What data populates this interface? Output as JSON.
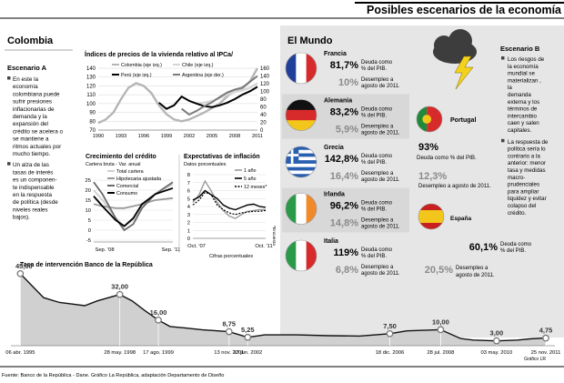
{
  "header": {
    "title": "Posibles escenarios de la economía"
  },
  "colombia": {
    "title": "Colombia",
    "scenario_a": {
      "title": "Escenario A",
      "bullets": [
        [
          "En este la",
          "economía",
          "colombiana puede",
          "sufrir presiones",
          "inflacionarias de",
          "demanda y la",
          "expansión del",
          "crédito se acelera o",
          "se mantiene a",
          "ritmos actuales por",
          "mucho tiempo."
        ],
        [
          "Un alza de las",
          "tasas de interés",
          "es un componen-",
          "te indispensable",
          "en la respuesta",
          "de política (desde",
          "niveles reales",
          "bajos)."
        ]
      ]
    }
  },
  "mundo": {
    "title": "El Mundo",
    "desc_line1": "Deuda como",
    "desc_line2": "% del PIB.",
    "unemp_line1": "Desempleo a",
    "unemp_line2": "agosto de 2011.",
    "countries": [
      {
        "name": "Francia",
        "debt": "81,7%",
        "unemployment": "10%",
        "flag": "france"
      },
      {
        "name": "Alemania",
        "debt": "83,2%",
        "unemployment": "5,9%",
        "flag": "germany"
      },
      {
        "name": "Grecia",
        "debt": "142,8%",
        "unemployment": "16,4%",
        "flag": "greece"
      },
      {
        "name": "Irlanda",
        "debt": "96,2%",
        "unemployment": "14,8%",
        "flag": "ireland"
      },
      {
        "name": "Italia",
        "debt": "119%",
        "unemployment": "6,8%",
        "flag": "italy"
      }
    ],
    "portugal": {
      "name": "Portugal",
      "debt": "93%",
      "debt_text": "Deuda como % del PIB.",
      "unemployment": "12,3%",
      "unemp_text": "Desempleo a agosto de 2011."
    },
    "espana": {
      "name": "España",
      "debt": "60,1%",
      "debt_line1": "Deuda como",
      "debt_line2": "% del PIB.",
      "unemployment": "20,5%",
      "unemp_line1": "Desempleo a",
      "unemp_line2": "agosto de 2011."
    }
  },
  "scenario_b": {
    "title": "Escenario B",
    "bullets": [
      [
        "Los riesgos de",
        "la economía",
        "mundial se",
        "materializan ,",
        "la",
        "demanda",
        "externa y los",
        "términos de",
        "intercambio",
        "caen y salen",
        "capitales."
      ],
      [
        "La respuesta de",
        "política sería lo",
        "contrario a la",
        "anterior: menor",
        "tasa y medidas",
        "macro-",
        "prudenciales",
        "para ampliar",
        "liquidez y evitar",
        "colapso del",
        "crédito."
      ]
    ]
  },
  "footer": {
    "source": "Fuente: Banco de la República - Dane. Gráfico La República, adaptación Departamento de Diseño",
    "credit": "Gráfico LR"
  },
  "icons": [
    "flag-france",
    "flag-germany",
    "flag-greece",
    "flag-ireland",
    "flag-italy",
    "flag-portugal",
    "flag-spain",
    "storm-cloud-icon"
  ],
  "colors": {
    "panel_gray": "#e6e6e6",
    "rate_area": "#d0d0d0",
    "lightning": "#f5d21a"
  },
  "chart_data": [
    {
      "id": "vivienda",
      "type": "line",
      "title": "Índices de precios de la vivienda relativo al IPCa/",
      "legend": [
        "Colombia (eje izq.)",
        "Chile (eje izq.)",
        "Perú (eje izq.)",
        "Argentina (eje der.)"
      ],
      "x": [
        1990,
        1991,
        1992,
        1993,
        1994,
        1995,
        1996,
        1997,
        1998,
        1999,
        2000,
        2001,
        2002,
        2003,
        2004,
        2005,
        2006,
        2007,
        2008,
        2009,
        2010,
        2011
      ],
      "xticks": [
        "1990",
        "1993",
        "1996",
        "1999",
        "2002",
        "2005",
        "2008",
        "2011"
      ],
      "ylim_left": [
        70,
        140
      ],
      "yticks_left": [
        70,
        80,
        90,
        100,
        110,
        120,
        130,
        140
      ],
      "ylim_right": [
        0,
        160
      ],
      "yticks_right": [
        0,
        20,
        40,
        60,
        80,
        100,
        120,
        140,
        160
      ],
      "series": [
        {
          "name": "Colombia (eje izq.)",
          "values": [
            78,
            82,
            90,
            105,
            118,
            123,
            120,
            112,
            98,
            88,
            82,
            80,
            82,
            86,
            90,
            95,
            100,
            108,
            115,
            117,
            125,
            140
          ]
        },
        {
          "name": "Chile (eje izq.)",
          "values": [
            null,
            null,
            null,
            null,
            null,
            null,
            null,
            null,
            null,
            null,
            null,
            null,
            null,
            100,
            101,
            103,
            106,
            110,
            113,
            115,
            118,
            123
          ]
        },
        {
          "name": "Perú (eje izq.)",
          "values": [
            null,
            null,
            null,
            null,
            null,
            null,
            null,
            null,
            101,
            94,
            98,
            108,
            103,
            100,
            97,
            96,
            98,
            101,
            105,
            110,
            114,
            119
          ]
        },
        {
          "name": "Argentina (eje der.)",
          "values": [
            null,
            null,
            null,
            null,
            null,
            null,
            null,
            null,
            null,
            null,
            null,
            55,
            40,
            50,
            62,
            72,
            85,
            97,
            105,
            110,
            125,
            140
          ]
        }
      ]
    },
    {
      "id": "credito",
      "type": "line",
      "title": "Crecimiento del crédito",
      "subtitle": "Cartera bruta - Var. anual",
      "legend": [
        "Total cartera",
        "Hipotecaria ajustada",
        "Comercial",
        "Consumo"
      ],
      "x_range": [
        2008.67,
        2011.67
      ],
      "xticks": [
        "Sep. '08",
        "Sep. '11"
      ],
      "ylim": [
        -5,
        25
      ],
      "yticks": [
        -5,
        0,
        5,
        10,
        15,
        20,
        25
      ],
      "series": [
        {
          "name": "Total cartera",
          "x": [
            2008.67,
            2009.0,
            2009.5,
            2009.83,
            2010.17,
            2010.5,
            2011.0,
            2011.67
          ],
          "y": [
            20,
            15,
            6,
            2,
            5,
            12,
            18,
            23
          ]
        },
        {
          "name": "Hipotecaria ajustada",
          "x": [
            2008.67,
            2009.0,
            2009.5,
            2009.83,
            2010.17,
            2010.5,
            2011.0,
            2011.67
          ],
          "y": [
            13,
            12,
            11,
            11,
            12,
            13,
            15,
            16
          ]
        },
        {
          "name": "Comercial",
          "x": [
            2008.67,
            2009.0,
            2009.5,
            2009.83,
            2010.17,
            2010.5,
            2011.0,
            2011.67
          ],
          "y": [
            24,
            18,
            6,
            0,
            3,
            11,
            18,
            24
          ]
        },
        {
          "name": "Consumo",
          "x": [
            2008.67,
            2009.0,
            2009.5,
            2009.83,
            2010.17,
            2010.5,
            2011.0,
            2011.67
          ],
          "y": [
            17,
            12,
            5,
            2,
            6,
            13,
            18,
            21
          ]
        }
      ]
    },
    {
      "id": "inflacion",
      "type": "line",
      "title": "Expectativas de inflación",
      "subtitle": "Datos porcentuales",
      "legend": [
        "1 año",
        "5 año",
        "12 meses*"
      ],
      "note": "*Encuesta",
      "x_range": [
        2007.83,
        2011.83
      ],
      "xticks": [
        "Oct. '07",
        "Oct. '11"
      ],
      "ylim": [
        0,
        8
      ],
      "yticks": [
        0,
        1,
        2,
        3,
        4,
        5,
        6,
        7,
        8
      ],
      "series": [
        {
          "name": "1 año",
          "x": [
            2007.83,
            2008.17,
            2008.5,
            2008.83,
            2009.17,
            2009.5,
            2009.83,
            2010.17,
            2010.5,
            2010.83,
            2011.17,
            2011.5,
            2011.83
          ],
          "y": [
            4.5,
            5.5,
            7.2,
            6.0,
            4.5,
            3.5,
            2.8,
            2.5,
            3.0,
            3.4,
            3.5,
            3.6,
            3.6
          ]
        },
        {
          "name": "5 año",
          "x": [
            2007.83,
            2008.17,
            2008.5,
            2008.83,
            2009.17,
            2009.5,
            2009.83,
            2010.17,
            2010.5,
            2010.83,
            2011.17,
            2011.5,
            2011.83
          ],
          "y": [
            4.8,
            5.2,
            6.0,
            5.5,
            5.0,
            4.2,
            3.8,
            3.6,
            3.9,
            4.2,
            4.3,
            4.0,
            3.9
          ]
        },
        {
          "name": "12 meses*",
          "x": [
            2007.83,
            2008.17,
            2008.5,
            2008.83,
            2009.17,
            2009.5,
            2009.83,
            2010.17,
            2010.5,
            2010.83,
            2011.17,
            2011.5,
            2011.83
          ],
          "y": [
            4.2,
            4.8,
            5.8,
            5.5,
            4.2,
            3.6,
            3.2,
            3.0,
            3.2,
            3.3,
            3.4,
            3.4,
            3.5
          ]
        }
      ]
    },
    {
      "id": "tasa",
      "type": "area",
      "title": "Tasa de intervención Banco de la República",
      "ylabel": "Cifras porcentuales",
      "x_range": [
        1995.25,
        2011.9
      ],
      "points": [
        {
          "x": 1995.26,
          "label": "06 abr. 1995",
          "y": 45.0,
          "text": "45,00"
        },
        {
          "x": 1995.6,
          "y": 38
        },
        {
          "x": 1996.0,
          "y": 30
        },
        {
          "x": 1996.5,
          "y": 27
        },
        {
          "x": 1996.9,
          "y": 26
        },
        {
          "x": 1997.3,
          "y": 25
        },
        {
          "x": 1997.7,
          "y": 28
        },
        {
          "x": 1998.41,
          "label": "28 may. 1998",
          "y": 32.0,
          "text": "32,00"
        },
        {
          "x": 1998.8,
          "y": 28
        },
        {
          "x": 1999.2,
          "y": 22
        },
        {
          "x": 1999.63,
          "label": "17 ago. 1999",
          "y": 16.0,
          "text": "16,00"
        },
        {
          "x": 2000.0,
          "y": 12
        },
        {
          "x": 2000.5,
          "y": 11
        },
        {
          "x": 2001.0,
          "y": 10
        },
        {
          "x": 2001.87,
          "label": "13 nov. 2001",
          "y": 8.75,
          "text": "8,75"
        },
        {
          "x": 2002.46,
          "label": "17 jun. 2002",
          "y": 5.25,
          "text": "5,25"
        },
        {
          "x": 2003.0,
          "y": 6.75
        },
        {
          "x": 2004.0,
          "y": 6.75
        },
        {
          "x": 2005.0,
          "y": 6.25
        },
        {
          "x": 2006.0,
          "y": 6.0
        },
        {
          "x": 2006.96,
          "label": "18 dic. 2006",
          "y": 7.5,
          "text": "7,50"
        },
        {
          "x": 2007.5,
          "y": 9.25
        },
        {
          "x": 2008.57,
          "label": "28 jul. 2008",
          "y": 10.0,
          "text": "10,00"
        },
        {
          "x": 2009.2,
          "y": 4.5
        },
        {
          "x": 2009.6,
          "y": 3.5
        },
        {
          "x": 2010.34,
          "label": "03 may. 2010",
          "y": 3.0,
          "text": "3,00"
        },
        {
          "x": 2011.0,
          "y": 3.5
        },
        {
          "x": 2011.4,
          "y": 4.25
        },
        {
          "x": 2011.9,
          "label": "25 nov. 2011",
          "y": 4.75,
          "text": "4,75"
        }
      ]
    }
  ]
}
